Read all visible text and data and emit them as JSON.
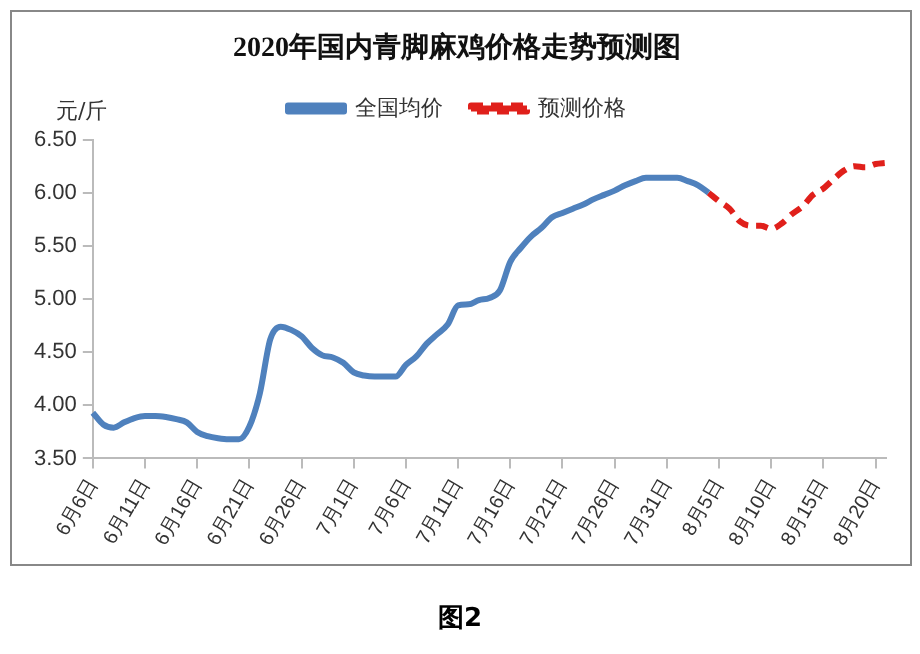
{
  "chart_data": {
    "type": "line",
    "title": "2020年国内青脚麻鸡价格走势预测图",
    "ylabel": "元/斤",
    "categories": [
      "6月6日",
      null,
      null,
      null,
      null,
      "6月11日",
      null,
      null,
      null,
      null,
      "6月16日",
      null,
      null,
      null,
      null,
      "6月21日",
      null,
      null,
      null,
      null,
      "6月26日",
      null,
      null,
      null,
      null,
      "7月1日",
      null,
      null,
      null,
      null,
      "7月6日",
      null,
      null,
      null,
      null,
      "7月11日",
      null,
      null,
      null,
      null,
      "7月16日",
      null,
      null,
      null,
      null,
      "7月21日",
      null,
      null,
      null,
      null,
      "7月26日",
      null,
      null,
      null,
      null,
      "7月31日",
      null,
      null,
      null,
      null,
      "8月5日",
      null,
      null,
      null,
      null,
      "8月10日",
      null,
      null,
      null,
      null,
      "8月15日",
      null,
      null,
      null,
      null,
      "8月20日",
      null
    ],
    "series": [
      {
        "name": "全国均价",
        "color": "#4f81bd",
        "line_style": "solid",
        "values": [
          3.93,
          3.82,
          3.79,
          3.84,
          3.88,
          3.9,
          3.9,
          3.89,
          3.87,
          3.84,
          3.75,
          3.71,
          3.69,
          3.68,
          3.68,
          3.8,
          4.11,
          4.62,
          4.74,
          4.71,
          4.65,
          4.54,
          4.47,
          4.45,
          4.4,
          4.31,
          4.28,
          4.27,
          4.27,
          4.27,
          4.38,
          4.46,
          4.58,
          4.67,
          4.76,
          4.94,
          4.95,
          4.99,
          5.01,
          5.08,
          5.35,
          5.48,
          5.59,
          5.67,
          5.77,
          5.81,
          5.85,
          5.89,
          5.94,
          5.98,
          6.02,
          6.07,
          6.11,
          6.14,
          6.14,
          6.14,
          6.14,
          6.11,
          6.07,
          6.0,
          null,
          null,
          null,
          null,
          null,
          null,
          null,
          null,
          null,
          null,
          null,
          null,
          null,
          null,
          null,
          null,
          null
        ]
      },
      {
        "name": "预测价格",
        "color": "#e0201b",
        "line_style": "dashed",
        "values": [
          null,
          null,
          null,
          null,
          null,
          null,
          null,
          null,
          null,
          null,
          null,
          null,
          null,
          null,
          null,
          null,
          null,
          null,
          null,
          null,
          null,
          null,
          null,
          null,
          null,
          null,
          null,
          null,
          null,
          null,
          null,
          null,
          null,
          null,
          null,
          null,
          null,
          null,
          null,
          null,
          null,
          null,
          null,
          null,
          null,
          null,
          null,
          null,
          null,
          null,
          null,
          null,
          null,
          null,
          null,
          null,
          null,
          null,
          null,
          6.0,
          5.92,
          5.85,
          5.73,
          5.69,
          5.69,
          5.66,
          5.71,
          5.8,
          5.87,
          5.98,
          6.04,
          6.13,
          6.21,
          6.25,
          6.24,
          6.27,
          6.28
        ]
      }
    ],
    "ylim": [
      3.5,
      6.5
    ],
    "yticks": [
      {
        "value": 3.5,
        "label": "3.50"
      },
      {
        "value": 4,
        "label": "4.00"
      },
      {
        "value": 4.5,
        "label": "4.50"
      },
      {
        "value": 5,
        "label": "5.00"
      },
      {
        "value": 5.5,
        "label": "5.50"
      },
      {
        "value": 6,
        "label": "6.00"
      },
      {
        "value": 6.5,
        "label": "6.50"
      }
    ],
    "grid": false,
    "legend": "top",
    "marker": "none",
    "annotations": [
      "图2"
    ]
  }
}
